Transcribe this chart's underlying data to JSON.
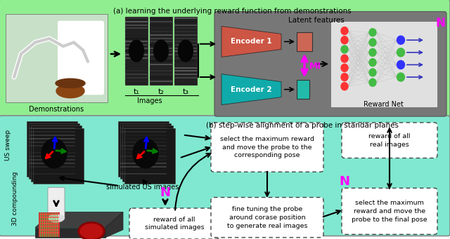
{
  "bg_top": "#90EE90",
  "bg_bottom": "#80E8D0",
  "bg_encoder_box": "#777777",
  "title_a": "(a) learning the underlying reward function from demonstrations",
  "title_b": "(b) step-wise alignment of a probe in standar planes",
  "encoder1_color": "#CC5544",
  "encoder2_color": "#11AAAA",
  "latent1_color": "#CC6655",
  "latent2_color": "#22BBAA",
  "mi_color": "#FF00FF",
  "reward_net_bg": "#FFFFFF",
  "node_red": "#FF3333",
  "node_green": "#44BB44",
  "node_blue": "#3333FF",
  "label_demonstrations": "Demonstrations",
  "label_images": "Images",
  "label_latent": "Latent features",
  "label_encoder1": "Encoder 1",
  "label_encoder2": "Encoder 2",
  "label_mi": "MI",
  "label_reward_net": "Reward Net",
  "label_N_top": "N",
  "label_N_mid": "N",
  "label_N_right": "N",
  "label_us_sweep": "US sweep",
  "label_3d": "3D compounding",
  "label_sim_us": "simulated US images",
  "box1_text": "select the maximum reward\nand move the probe to the\ncorresponding pose",
  "box2_text": "reward of all\nreal images",
  "box3_text": "reward of all\nsimulated images",
  "box4_text": "fine tuning the probe\naround corase position\nto generate real images",
  "box5_text": "select the maximum\nreward and move the\nprobe to the final pose",
  "t1": "t₁",
  "t2": "t₂",
  "t3": "t₃"
}
